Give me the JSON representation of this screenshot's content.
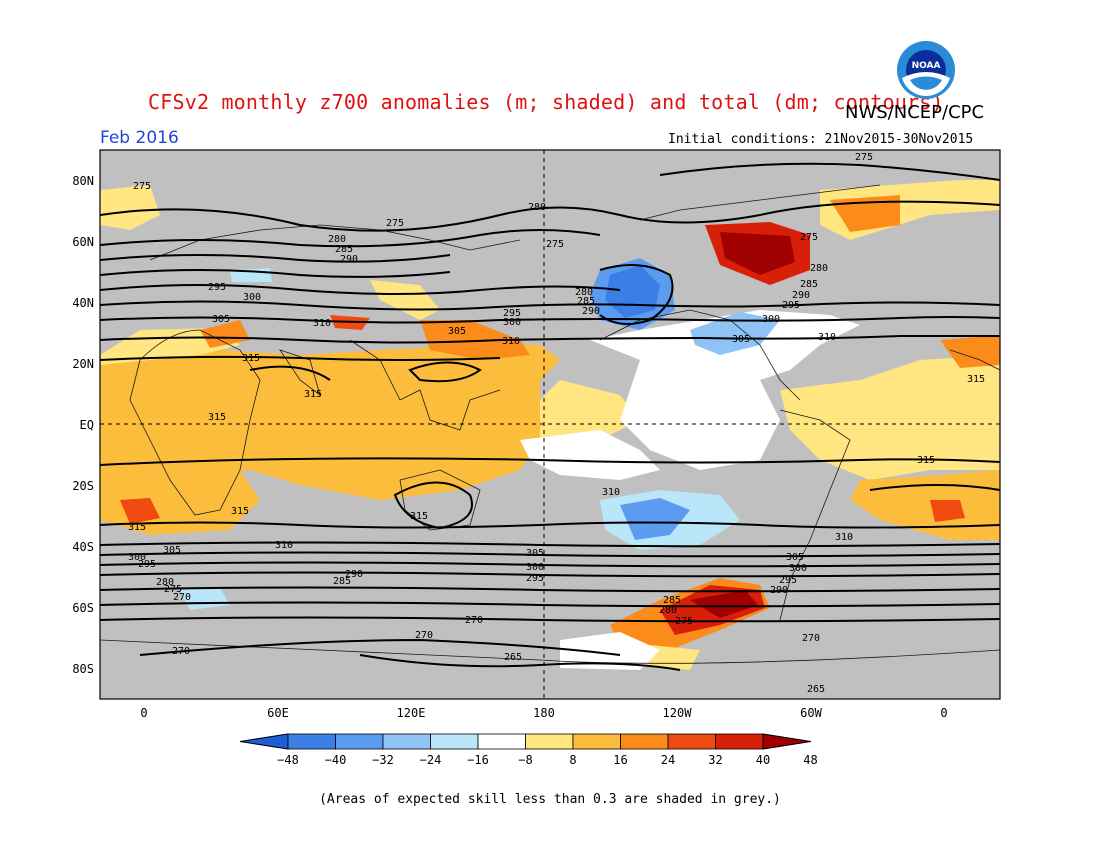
{
  "header": {
    "title": "CFSv2 monthly z700 anomalies (m; shaded) and total (dm; contours)",
    "agency": "NWS/NCEP/CPC",
    "month": "Feb 2016",
    "initial_conditions": "Initial conditions: 21Nov2015-30Nov2015",
    "logo_text": "NOAA",
    "logo_icon": "noaa-logo-icon"
  },
  "axes": {
    "x_ticks": [
      "0",
      "60E",
      "120E",
      "180",
      "120W",
      "60W",
      "0"
    ],
    "y_ticks": [
      "80N",
      "60N",
      "40N",
      "20N",
      "EQ",
      "20S",
      "40S",
      "60S",
      "80S"
    ]
  },
  "colorbar": {
    "labels": [
      "-48",
      "-40",
      "-32",
      "-24",
      "-16",
      "-8",
      "8",
      "16",
      "24",
      "32",
      "40",
      "48"
    ],
    "colors": [
      "#1e5fd8",
      "#3a7ee6",
      "#5b9cf0",
      "#8fc3f6",
      "#b9e6f8",
      "#ffffff",
      "#ffe680",
      "#fdbd3c",
      "#fb8c1c",
      "#f04a10",
      "#d81f08",
      "#a00000"
    ]
  },
  "contour_labels": [
    "275",
    "280",
    "285",
    "290",
    "295",
    "300",
    "305",
    "310",
    "315",
    "265",
    "270"
  ],
  "footer": "(Areas of expected skill less than 0.3 are shaded in grey.)",
  "colors": {
    "grey_mask": "#c0c0c0",
    "title_red": "#e01010",
    "month_blue": "#2244dd"
  }
}
